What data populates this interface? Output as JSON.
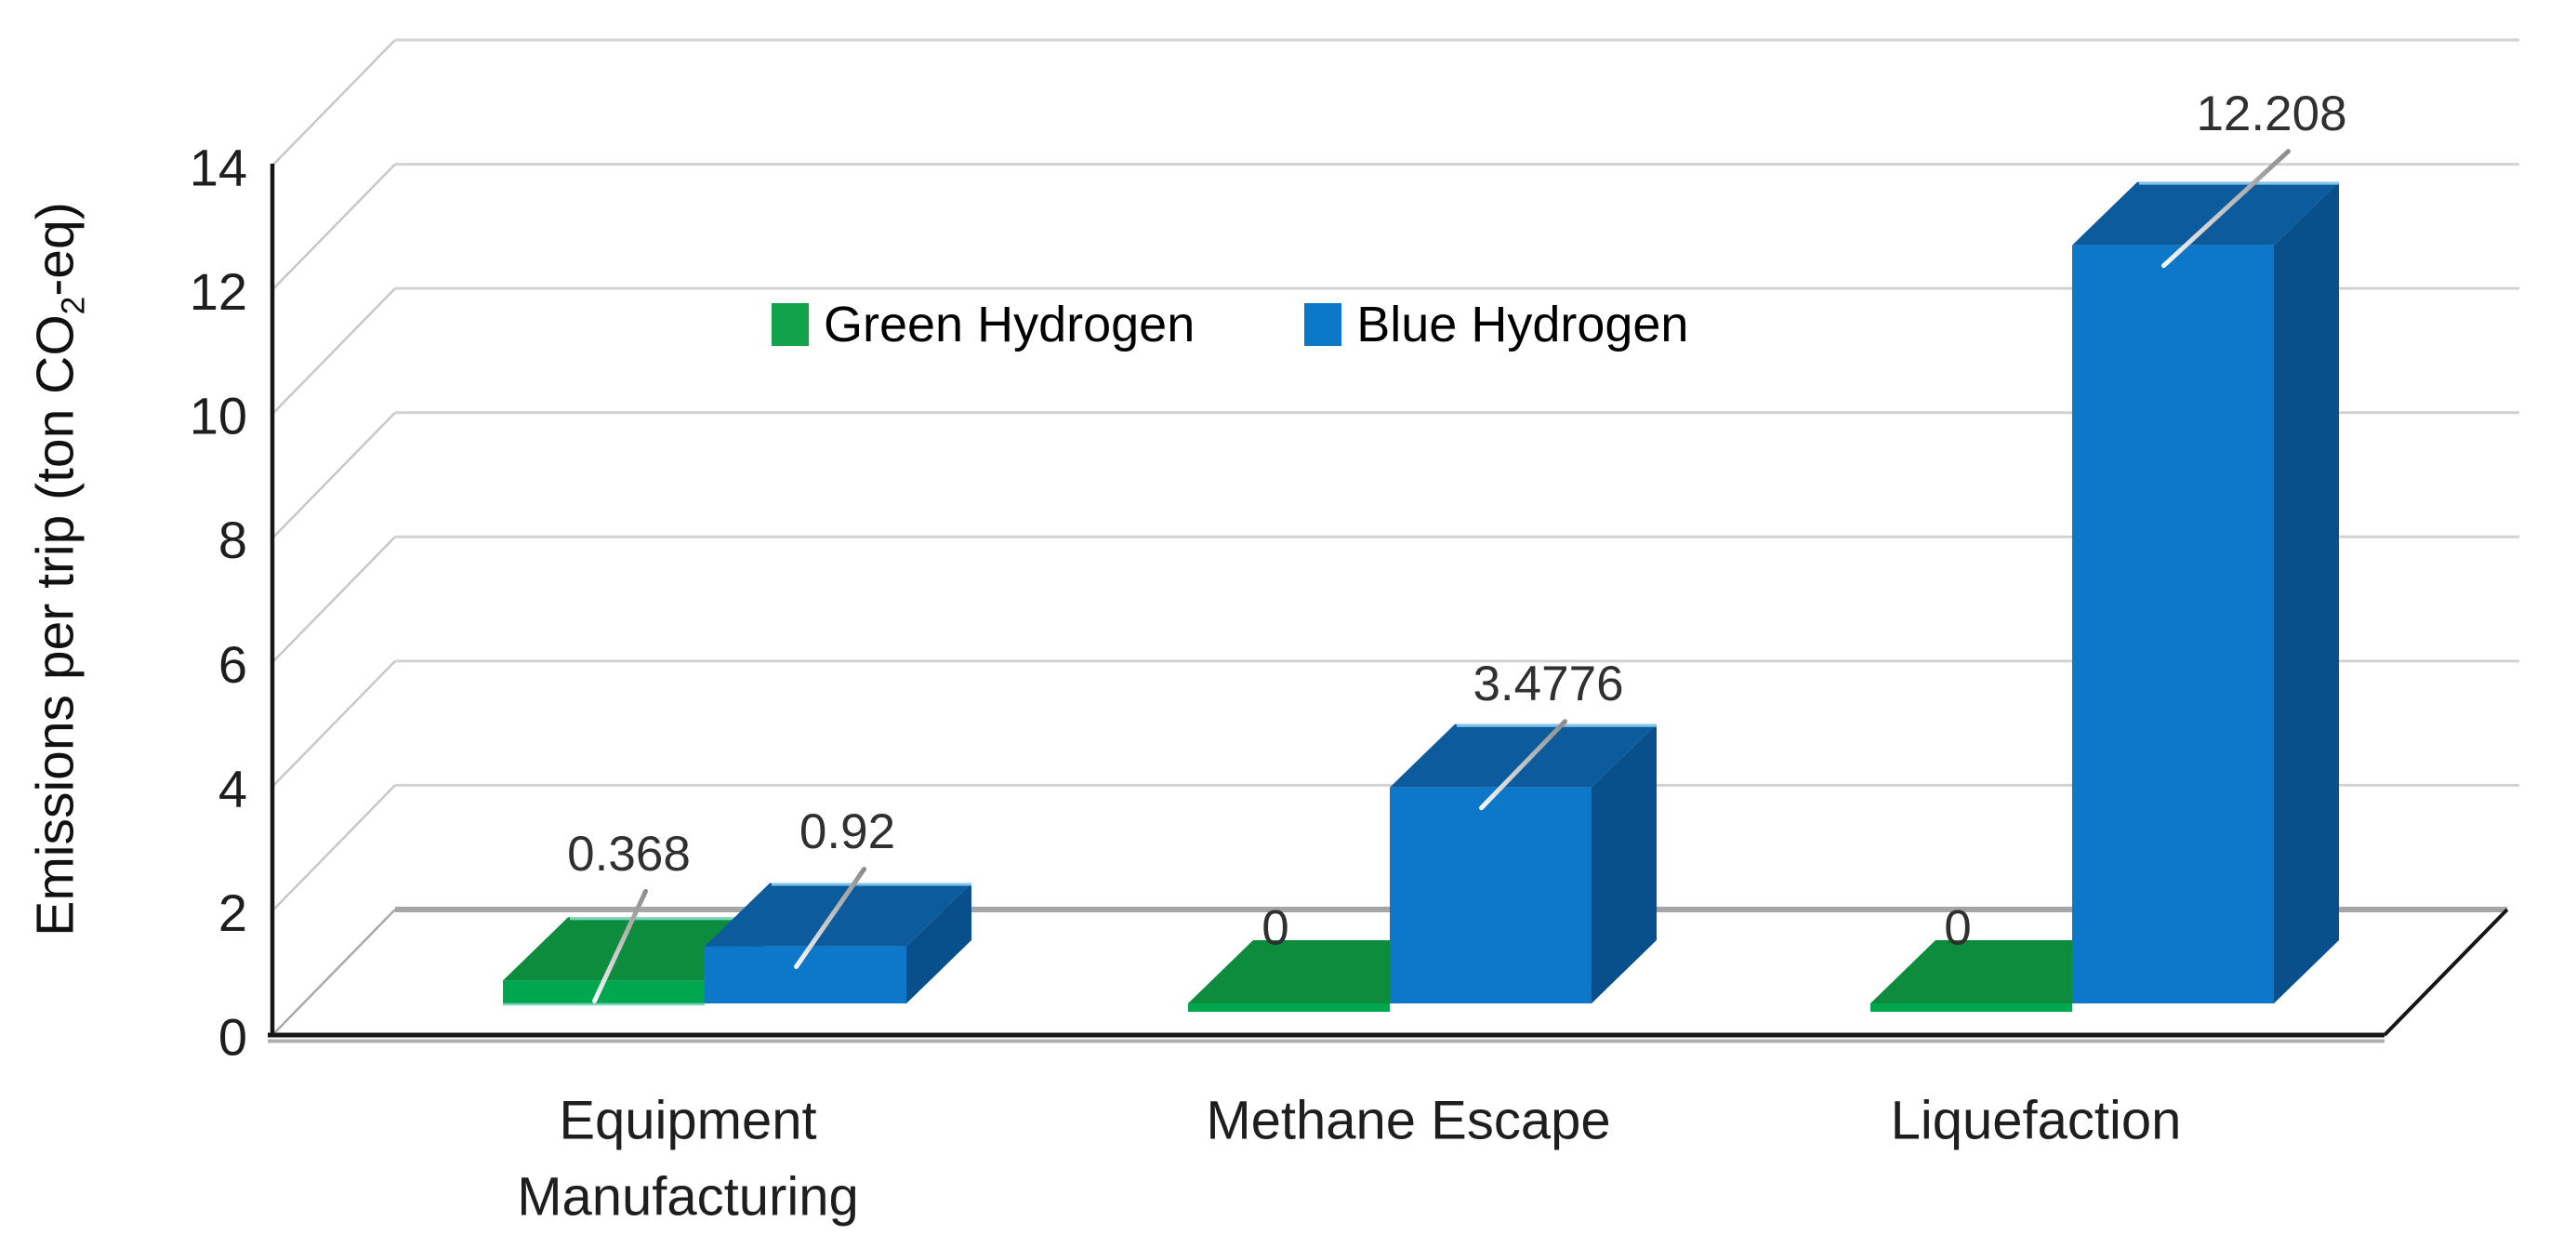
{
  "chart_data": {
    "type": "bar",
    "projection": "3d",
    "title": "",
    "categories": [
      "Equipment Manufacturing",
      "Methane Escape",
      "Liquefaction"
    ],
    "category_lines": [
      [
        "Equipment",
        "Manufacturing"
      ],
      [
        "Methane Escape"
      ],
      [
        "Liquefaction"
      ]
    ],
    "series": [
      {
        "name": "Green Hydrogen",
        "color": "#12A24B",
        "values": [
          0.368,
          0,
          0
        ],
        "data_labels": [
          "0.368",
          "0",
          "0"
        ]
      },
      {
        "name": "Blue Hydrogen",
        "color": "#0C79C8",
        "values": [
          0.92,
          3.4776,
          12.208
        ],
        "data_labels": [
          "0.92",
          "3.4776",
          "12.208"
        ]
      }
    ],
    "ylabel": {
      "pre": "Emissions per trip (ton CO",
      "sub": "2",
      "post": "-eq)"
    },
    "yticks": [
      0,
      2,
      4,
      6,
      8,
      10,
      12,
      14
    ],
    "ylim": [
      0,
      14
    ],
    "grid": true,
    "legend_position": "top-center-inside"
  },
  "colors": {
    "green_front": "#00A74F",
    "green_top": "#0D8C3E",
    "green_side": "#087A37",
    "green_edge_highlight": "#7ED3BC",
    "blue_front": "#0D78C9",
    "blue_top": "#0B5B9D",
    "blue_side": "#084F8C",
    "blue_edge_highlight": "#7FC4EC",
    "gridline": "#D2D2D2",
    "wall_diagonal": "#C8C8C8",
    "floor_back_edge": "#A5A5A5",
    "floor_left_edge": "#A9A9A9",
    "floor_shadow": "#AFAFAF",
    "axis": "#161616",
    "leader_top": "#8C8C8C",
    "leader_bottom": "#F7F7F7",
    "tick_text": "#1E1E1E",
    "category_text": "#1E1E1E",
    "data_label_text": "#303030"
  }
}
